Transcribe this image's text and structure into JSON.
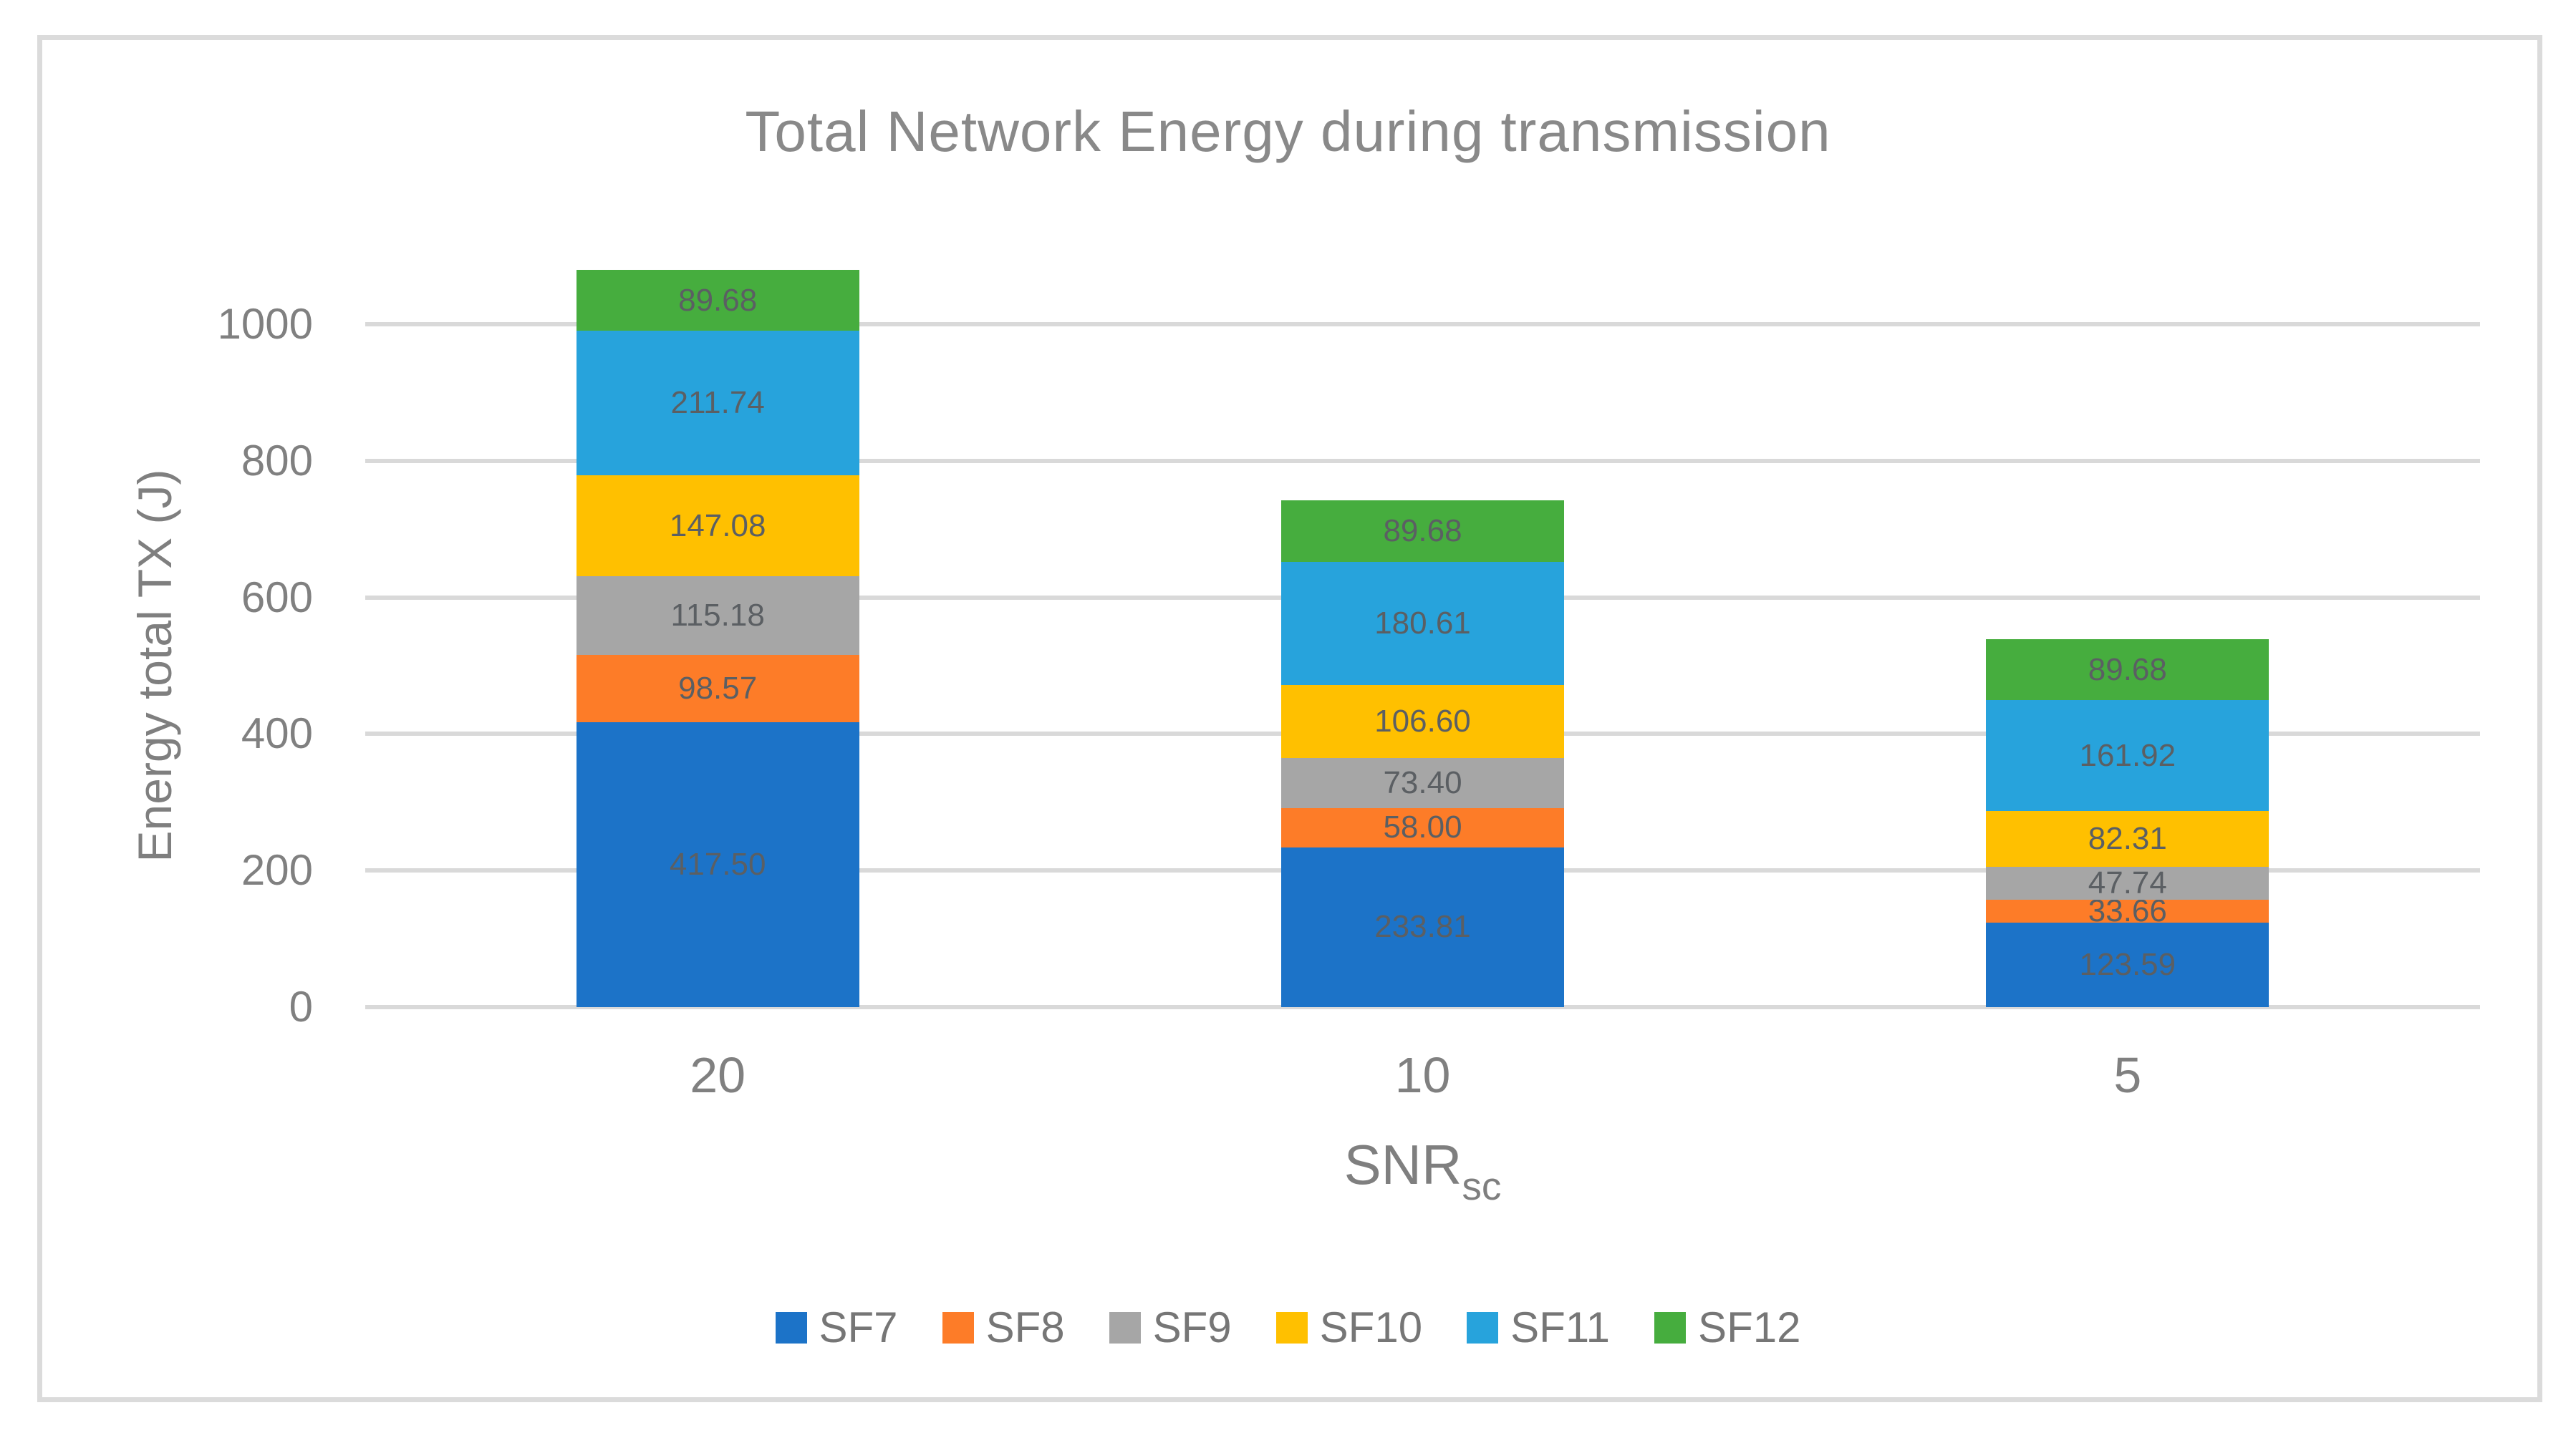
{
  "figure": {
    "border_color": "#DBDBDB",
    "background_color": "#FFFFFF"
  },
  "styles": {
    "grid_color": "#D9D9D9",
    "title_color": "#898989",
    "axis_text_color": "#7F7F7F",
    "tick_text_color": "#808080",
    "data_label_color": "#5B5F63",
    "legend_text_color": "#767676"
  },
  "chart_data": {
    "type": "bar",
    "stacked": true,
    "title": "Total Network Energy during transmission",
    "x_axis": {
      "label": "SNR",
      "label_subscript": "sc",
      "categories": [
        "20",
        "10",
        "5"
      ]
    },
    "y_axis": {
      "label": "Energy total TX (J)",
      "ticks": [
        0,
        200,
        400,
        600,
        800,
        1000
      ],
      "range": [
        0,
        1100
      ]
    },
    "grid": true,
    "legend_position": "bottom",
    "data_label_decimals": 2,
    "series": [
      {
        "name": "SF7",
        "color": "#1C73C8",
        "values": [
          417.5,
          233.81,
          123.59
        ]
      },
      {
        "name": "SF8",
        "color": "#FD7C28",
        "values": [
          98.57,
          58.0,
          33.66
        ]
      },
      {
        "name": "SF9",
        "color": "#A6A6A6",
        "values": [
          115.18,
          73.4,
          47.74
        ]
      },
      {
        "name": "SF10",
        "color": "#FFC000",
        "values": [
          147.08,
          106.6,
          82.31
        ]
      },
      {
        "name": "SF11",
        "color": "#27A3DC",
        "values": [
          211.74,
          180.61,
          161.92
        ]
      },
      {
        "name": "SF12",
        "color": "#46AD3E",
        "values": [
          89.68,
          89.68,
          89.68
        ]
      }
    ]
  }
}
